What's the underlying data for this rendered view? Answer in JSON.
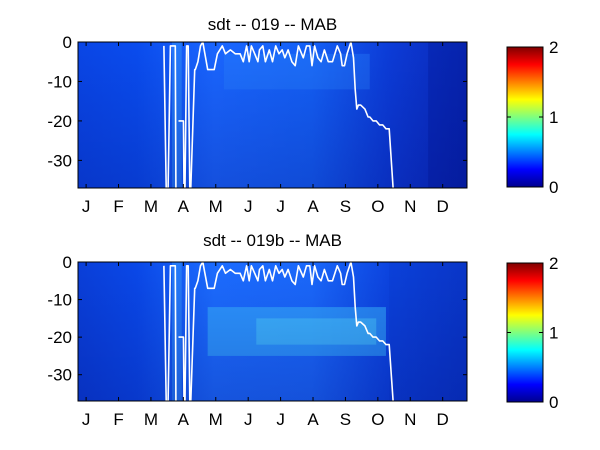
{
  "chart_data": [
    {
      "type": "heatmap",
      "title": "sdt -- 019 -- MAB",
      "x_ticks": [
        "J",
        "F",
        "M",
        "A",
        "M",
        "J",
        "J",
        "A",
        "S",
        "O",
        "N",
        "D"
      ],
      "y_ticks": [
        "0",
        "-10",
        "-20",
        "-30"
      ],
      "y_tick_values": [
        0,
        -10,
        -20,
        -30
      ],
      "ylim": [
        -37,
        0
      ],
      "xlim_month": [
        0,
        12
      ],
      "colorbar": {
        "ticks": [
          "0",
          "1",
          "2"
        ],
        "tick_values": [
          0,
          1,
          2
        ],
        "clim": [
          0,
          2
        ],
        "colormap": "jet"
      },
      "white_line_series": {
        "month": [
          0,
          2.6,
          2.65,
          2.72,
          2.78,
          2.85,
          3.0,
          3.02,
          3.05,
          3.08,
          3.1,
          3.25,
          3.27,
          3.3,
          3.35,
          3.4,
          3.45,
          3.48,
          3.6,
          3.62,
          3.7,
          3.78,
          3.85,
          4.0,
          4.2,
          4.3,
          4.45,
          4.55,
          4.7,
          4.85,
          5.0,
          5.1,
          5.2,
          5.28,
          5.35,
          5.45,
          5.55,
          5.6,
          5.7,
          5.78,
          5.9,
          6.0,
          6.1,
          6.2,
          6.3,
          6.38,
          6.48,
          6.6,
          6.7,
          6.8,
          6.95,
          7.05,
          7.15,
          7.22,
          7.3,
          7.4,
          7.5,
          7.6,
          7.72,
          7.85,
          8.0,
          8.1,
          8.15,
          8.22,
          8.3,
          8.42,
          8.5,
          8.55,
          8.6,
          8.65,
          8.72,
          8.85,
          8.95,
          9.0,
          9.1,
          9.2,
          9.3,
          9.4,
          9.5,
          9.6,
          9.72,
          9.82,
          9.9,
          9.95,
          10.0,
          10.5,
          12.0
        ],
        "depth": [
          null,
          null,
          -1,
          -37,
          -37,
          -1,
          -1,
          -37,
          null,
          null,
          -20,
          -20,
          -37,
          -37,
          -1,
          -1,
          -37,
          -37,
          -7,
          -7,
          -5,
          -1,
          0,
          -7,
          -7,
          -3,
          -1,
          -3,
          -2,
          -3,
          -3,
          -5,
          -1,
          -5,
          -1,
          -3,
          -5,
          -2,
          -1,
          -5,
          -2,
          -5,
          -1,
          -3,
          -2,
          -4,
          -2,
          -5,
          -6,
          -1,
          -4,
          -1,
          -1,
          -6,
          -1,
          -4,
          -5,
          -2,
          -5,
          -5,
          -1,
          -3,
          -6,
          -6,
          -3,
          0,
          -4,
          -12,
          -17,
          -16,
          -16,
          -17,
          -19,
          -19,
          -20,
          -20,
          -21,
          -21,
          -22,
          -22,
          -37,
          null,
          null,
          null,
          null,
          null,
          null
        ]
      }
    },
    {
      "type": "heatmap",
      "title": "sdt -- 019b -- MAB",
      "x_ticks": [
        "J",
        "F",
        "M",
        "A",
        "M",
        "J",
        "J",
        "A",
        "S",
        "O",
        "N",
        "D"
      ],
      "y_ticks": [
        "0",
        "-10",
        "-20",
        "-30"
      ],
      "y_tick_values": [
        0,
        -10,
        -20,
        -30
      ],
      "ylim": [
        -37,
        0
      ],
      "xlim_month": [
        0,
        12
      ],
      "colorbar": {
        "ticks": [
          "0",
          "1",
          "2"
        ],
        "tick_values": [
          0,
          1,
          2
        ],
        "clim": [
          0,
          2
        ],
        "colormap": "jet"
      },
      "white_line_series": {
        "month": [
          0,
          2.6,
          2.65,
          2.72,
          2.78,
          2.85,
          3.0,
          3.02,
          3.05,
          3.08,
          3.1,
          3.25,
          3.27,
          3.3,
          3.35,
          3.4,
          3.45,
          3.48,
          3.6,
          3.62,
          3.7,
          3.78,
          3.85,
          4.0,
          4.2,
          4.3,
          4.45,
          4.55,
          4.7,
          4.85,
          5.0,
          5.1,
          5.2,
          5.28,
          5.35,
          5.45,
          5.55,
          5.6,
          5.7,
          5.78,
          5.9,
          6.0,
          6.1,
          6.2,
          6.3,
          6.38,
          6.48,
          6.6,
          6.7,
          6.8,
          6.95,
          7.05,
          7.15,
          7.22,
          7.3,
          7.4,
          7.5,
          7.6,
          7.72,
          7.85,
          8.0,
          8.1,
          8.15,
          8.22,
          8.3,
          8.42,
          8.5,
          8.55,
          8.6,
          8.65,
          8.72,
          8.85,
          8.95,
          9.0,
          9.1,
          9.2,
          9.3,
          9.4,
          9.5,
          9.6,
          9.72,
          9.82,
          9.9,
          9.95,
          10.0,
          10.5,
          12.0
        ],
        "depth": [
          null,
          null,
          -1,
          -37,
          -37,
          -1,
          -1,
          -37,
          null,
          null,
          -20,
          -20,
          -37,
          -37,
          -1,
          -1,
          -37,
          -37,
          -7,
          -7,
          -5,
          -1,
          0,
          -7,
          -7,
          -3,
          -1,
          -3,
          -2,
          -3,
          -3,
          -5,
          -1,
          -5,
          -1,
          -3,
          -5,
          -2,
          -1,
          -5,
          -2,
          -5,
          -1,
          -3,
          -2,
          -4,
          -2,
          -5,
          -6,
          -1,
          -4,
          -1,
          -1,
          -6,
          -1,
          -4,
          -5,
          -2,
          -5,
          -5,
          -1,
          -3,
          -6,
          -6,
          -3,
          0,
          -4,
          -12,
          -17,
          -16,
          -16,
          -17,
          -19,
          -19,
          -20,
          -20,
          -21,
          -21,
          -22,
          -22,
          -37,
          null,
          null,
          null,
          null,
          null,
          null
        ]
      }
    }
  ]
}
